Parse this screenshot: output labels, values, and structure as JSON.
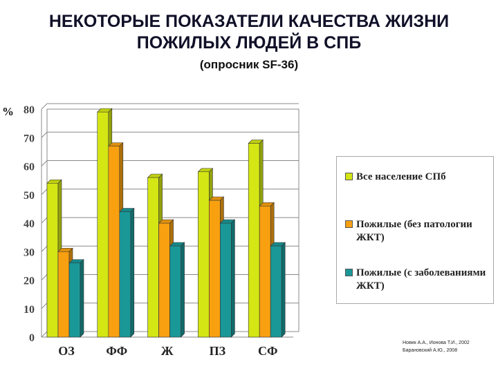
{
  "title_line1": "НЕКОТОРЫЕ ПОКАЗАТЕЛИ КАЧЕСТВА ЖИЗНИ",
  "title_line2": "ПОЖИЛЫХ ЛЮДЕЙ В СПБ",
  "subtitle": "(опросник SF-36)",
  "y_unit": "%",
  "credits": [
    "Новик А.А., Ионова Т.И., 2002",
    "Барановский А.Ю., 2008"
  ],
  "chart_data": {
    "type": "bar",
    "categories": [
      "ОЗ",
      "ФФ",
      "Ж",
      "ПЗ",
      "СФ"
    ],
    "series": [
      {
        "name": "Все население СПб",
        "values": [
          54,
          79,
          56,
          58,
          68
        ],
        "color": "#d4e614"
      },
      {
        "name": "Пожилые (без патологии ЖКТ)",
        "values": [
          30,
          67,
          40,
          48,
          46
        ],
        "color": "#f8a010"
      },
      {
        "name": "Пожилые (с заболеваниями ЖКТ)",
        "values": [
          26,
          44,
          32,
          40,
          32
        ],
        "color": "#1a9898"
      }
    ],
    "ylim": [
      0,
      80
    ],
    "yticks": [
      "0",
      "10",
      "20",
      "30",
      "40",
      "50",
      "60",
      "70",
      "80"
    ],
    "grid": true,
    "legend_position": "right"
  }
}
